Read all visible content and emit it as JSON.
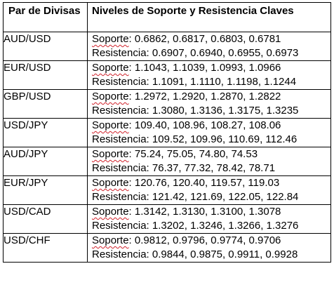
{
  "table": {
    "header": {
      "pair": "Par de Divisas",
      "levels": "Niveles de Soporte y Resistencia Claves"
    },
    "labels": {
      "support": "Soporte",
      "resistance": "Resistencia"
    },
    "rows": [
      {
        "pair": "AUD/USD",
        "support": ": 0.6862, 0.6817, 0.6803, 0.6781",
        "resistance": ": 0.6907, 0.6940, 0.6955, 0.6973"
      },
      {
        "pair": "EUR/USD",
        "support": ": 1.1043, 1.1039, 1.0993, 1.0966",
        "resistance": ": 1.1091, 1.1110, 1.1198, 1.1244"
      },
      {
        "pair": "GBP/USD",
        "support": ": 1.2972, 1.2920, 1.2870, 1.2822",
        "resistance": ": 1.3080, 1.3136, 1.3175, 1.3235"
      },
      {
        "pair": "USD/JPY",
        "support": ": 109.40, 108.96, 108.27, 108.06",
        "resistance": ": 109.52, 109.96, 110.69, 112.46"
      },
      {
        "pair": "AUD/JPY",
        "support": ": 75.24, 75.05, 74.80, 74.53",
        "resistance": ": 76.37, 77.32, 78.42, 78.71"
      },
      {
        "pair": "EUR/JPY",
        "support": ": 120.76, 120.40, 119.57, 119.03",
        "resistance": ": 121.42, 121.69, 122.05, 122.84"
      },
      {
        "pair": "USD/CAD",
        "support": ": 1.3142, 1.3130, 1.3100, 1.3078",
        "resistance": ": 1.3202, 1.3246, 1.3266, 1.3276"
      },
      {
        "pair": "USD/CHF",
        "support": ": 0.9812, 0.9796, 0.9774, 0.9706",
        "resistance": ": 0.9844, 0.9875, 0.9911, 0.9928"
      }
    ]
  }
}
